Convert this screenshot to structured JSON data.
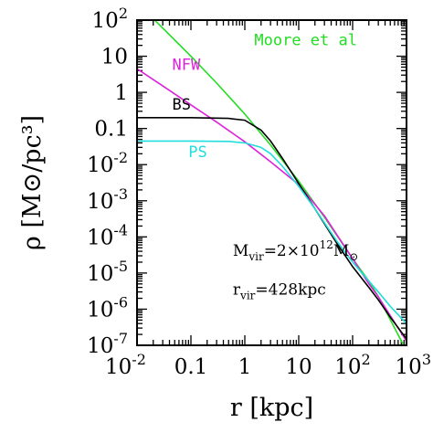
{
  "chart_data": {
    "type": "line",
    "xscale": "log",
    "yscale": "log",
    "xlim": [
      0.01,
      1000
    ],
    "ylim": [
      1e-07,
      100
    ],
    "xlabel": "r [kpc]",
    "ylabel": "ρ [M⊙/pc³]",
    "x_ticks": [
      {
        "value": 0.01,
        "base": "10",
        "exp": "-2"
      },
      {
        "value": 0.1,
        "text": "0.1"
      },
      {
        "value": 1,
        "text": "1"
      },
      {
        "value": 10,
        "text": "10"
      },
      {
        "value": 100,
        "base": "10",
        "exp": "2"
      },
      {
        "value": 1000,
        "base": "10",
        "exp": "3"
      }
    ],
    "y_ticks": [
      {
        "value": 100,
        "base": "10",
        "exp": "2"
      },
      {
        "value": 10,
        "text": "10"
      },
      {
        "value": 1,
        "text": "1"
      },
      {
        "value": 0.1,
        "text": "0.1"
      },
      {
        "value": 0.01,
        "base": "10",
        "exp": "-2"
      },
      {
        "value": 0.001,
        "base": "10",
        "exp": "-3"
      },
      {
        "value": 0.0001,
        "base": "10",
        "exp": "-4"
      },
      {
        "value": 1e-05,
        "base": "10",
        "exp": "-5"
      },
      {
        "value": 1e-06,
        "base": "10",
        "exp": "-6"
      },
      {
        "value": 1e-07,
        "base": "10",
        "exp": "-7"
      }
    ],
    "series": [
      {
        "name": "Moore et al",
        "color": "#22dd22",
        "x": [
          0.01,
          0.03,
          0.1,
          0.3,
          1,
          3,
          10,
          30,
          100,
          200,
          300,
          1000
        ],
        "y": [
          300,
          60,
          10,
          1.8,
          0.25,
          0.035,
          0.0035,
          0.00035,
          2.5e-05,
          6e-06,
          2.2e-06,
          7e-08
        ]
      },
      {
        "name": "NFW",
        "color": "#dd22dd",
        "x": [
          0.01,
          0.03,
          0.1,
          0.3,
          1,
          3,
          10,
          30,
          100,
          200,
          300,
          1000
        ],
        "y": [
          4.5,
          1.5,
          0.45,
          0.15,
          0.043,
          0.012,
          0.0028,
          0.00038,
          2.5e-05,
          5e-06,
          2.2e-06,
          1.3e-07
        ]
      },
      {
        "name": "BS",
        "color": "#000000",
        "x": [
          0.01,
          0.1,
          0.5,
          1,
          2,
          3,
          5,
          10,
          20,
          50,
          100,
          200,
          300,
          500,
          1000
        ],
        "y": [
          0.2,
          0.2,
          0.19,
          0.17,
          0.09,
          0.045,
          0.015,
          0.003,
          0.0006,
          7e-05,
          1.5e-05,
          4e-06,
          1.8e-06,
          6e-07,
          1.5e-07
        ]
      },
      {
        "name": "PS",
        "color": "#22dddd",
        "x": [
          0.01,
          0.1,
          0.5,
          1,
          2,
          3,
          5,
          10,
          20,
          50,
          100,
          200,
          300,
          500,
          1000
        ],
        "y": [
          0.045,
          0.045,
          0.044,
          0.04,
          0.03,
          0.02,
          0.009,
          0.0025,
          0.0006,
          8e-05,
          2e-05,
          6e-06,
          3e-06,
          1.2e-06,
          4e-07
        ]
      }
    ],
    "series_labels": [
      {
        "series": "Moore et al",
        "text": "Moore et al",
        "x": 1.5,
        "y": 20
      },
      {
        "series": "NFW",
        "text": "NFW",
        "x": 0.045,
        "y": 4.2
      },
      {
        "series": "BS",
        "text": "BS",
        "x": 0.045,
        "y": 0.33
      },
      {
        "series": "PS",
        "text": "PS",
        "x": 0.09,
        "y": 0.016
      }
    ],
    "annotations": [
      {
        "parts": [
          [
            "M",
            "base"
          ],
          [
            "vir",
            "sub"
          ],
          [
            "=2×10",
            "base"
          ],
          [
            "12",
            "sup"
          ],
          [
            "M",
            "base"
          ],
          [
            "⊙",
            "sub"
          ]
        ],
        "x": 0.6,
        "y": 3e-05
      },
      {
        "parts": [
          [
            "r",
            "base"
          ],
          [
            "vir",
            "sub"
          ],
          [
            "=428kpc",
            "base"
          ]
        ],
        "x": 0.6,
        "y": 2.5e-06
      }
    ]
  }
}
